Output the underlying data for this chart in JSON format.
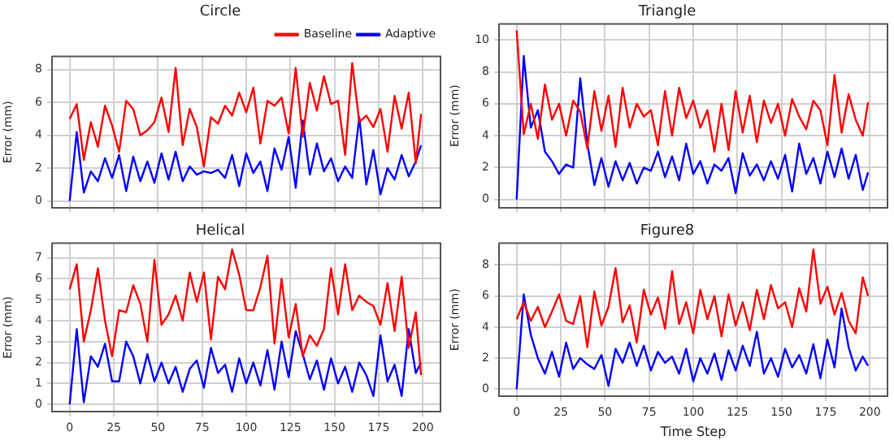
{
  "chart_data": [
    {
      "type": "line",
      "title": "Circle",
      "ylabel": "Error (mm)",
      "xlim": [
        -10,
        210
      ],
      "xticks": [
        0,
        25,
        50,
        75,
        100,
        125,
        150,
        175,
        200
      ],
      "ylim": [
        -0.4,
        8.8
      ],
      "yticks": [
        0,
        2,
        4,
        6,
        8
      ],
      "grid": true,
      "legend": "top right",
      "tick_labels": "y",
      "marker": "none",
      "x": [
        0,
        4,
        8,
        12,
        16,
        20,
        24,
        28,
        32,
        36,
        40,
        44,
        48,
        52,
        56,
        60,
        64,
        68,
        72,
        76,
        80,
        84,
        88,
        92,
        96,
        100,
        104,
        108,
        112,
        116,
        120,
        124,
        128,
        132,
        136,
        140,
        144,
        148,
        152,
        156,
        160,
        164,
        168,
        172,
        176,
        180,
        184,
        188,
        192,
        196,
        199
      ],
      "series": [
        {
          "name": "Baseline",
          "color": "#ff0000",
          "values": [
            5.0,
            5.9,
            2.5,
            4.8,
            3.3,
            5.8,
            4.6,
            3.0,
            6.1,
            5.6,
            4.0,
            4.3,
            4.8,
            6.3,
            4.2,
            8.1,
            3.4,
            5.6,
            4.5,
            2.1,
            5.1,
            4.7,
            5.8,
            5.2,
            6.6,
            5.4,
            6.9,
            3.5,
            6.1,
            5.8,
            6.3,
            4.1,
            8.1,
            3.9,
            7.2,
            5.5,
            7.6,
            5.9,
            6.1,
            2.8,
            8.4,
            4.8,
            5.2,
            4.5,
            5.6,
            3.0,
            6.4,
            4.4,
            6.6,
            2.3,
            5.3
          ]
        },
        {
          "name": "Adaptive",
          "color": "#0000ff",
          "values": [
            0.0,
            4.2,
            0.5,
            1.8,
            1.2,
            2.6,
            1.4,
            2.8,
            0.6,
            2.7,
            1.2,
            2.4,
            1.1,
            2.9,
            1.3,
            3.0,
            1.2,
            2.1,
            1.6,
            1.8,
            1.7,
            1.9,
            1.4,
            2.8,
            0.9,
            2.9,
            1.7,
            2.4,
            0.6,
            3.2,
            1.9,
            3.9,
            0.8,
            4.9,
            1.6,
            3.5,
            1.8,
            2.6,
            1.2,
            2.1,
            1.4,
            5.1,
            1.0,
            3.1,
            0.4,
            2.0,
            1.3,
            2.8,
            1.5,
            2.4,
            3.4
          ]
        }
      ]
    },
    {
      "type": "line",
      "title": "Triangle",
      "ylabel": "Error (mm)",
      "xlim": [
        -10,
        210
      ],
      "xticks": [
        0,
        25,
        50,
        75,
        100,
        125,
        150,
        175,
        200
      ],
      "ylim": [
        -0.5,
        11
      ],
      "yticks": [
        0,
        2,
        4,
        6,
        8,
        10
      ],
      "grid": true,
      "tick_labels": "y",
      "marker": "none",
      "x": [
        0,
        4,
        8,
        12,
        16,
        20,
        24,
        28,
        32,
        36,
        40,
        44,
        48,
        52,
        56,
        60,
        64,
        68,
        72,
        76,
        80,
        84,
        88,
        92,
        96,
        100,
        104,
        108,
        112,
        116,
        120,
        124,
        128,
        132,
        136,
        140,
        144,
        148,
        152,
        156,
        160,
        164,
        168,
        172,
        176,
        180,
        184,
        188,
        192,
        196,
        199
      ],
      "series": [
        {
          "color": "#ff0000",
          "values": [
            10.6,
            4.1,
            6.0,
            3.8,
            7.2,
            5.0,
            6.0,
            4.0,
            6.2,
            5.5,
            3.2,
            6.8,
            4.3,
            6.5,
            3.3,
            7.0,
            4.5,
            6.0,
            5.2,
            5.6,
            3.4,
            6.8,
            4.0,
            7.0,
            5.1,
            6.2,
            4.5,
            5.6,
            3.0,
            6.0,
            3.1,
            6.8,
            4.2,
            6.5,
            3.6,
            6.2,
            4.8,
            6.0,
            4.0,
            6.3,
            5.2,
            4.4,
            6.2,
            5.6,
            3.4,
            7.8,
            4.2,
            6.6,
            5.0,
            4.0,
            6.1
          ]
        },
        {
          "color": "#0000ff",
          "values": [
            0.0,
            9.0,
            4.5,
            5.6,
            3.0,
            2.4,
            1.6,
            2.2,
            2.0,
            7.6,
            3.5,
            0.9,
            2.6,
            0.8,
            2.4,
            1.2,
            2.3,
            1.0,
            2.0,
            1.8,
            3.0,
            1.4,
            2.7,
            1.2,
            3.5,
            1.6,
            2.4,
            1.0,
            2.2,
            1.8,
            2.6,
            0.4,
            2.9,
            1.5,
            2.2,
            1.2,
            2.4,
            1.3,
            2.8,
            0.5,
            3.5,
            1.6,
            2.6,
            1.0,
            3.0,
            1.4,
            3.2,
            1.3,
            2.8,
            0.6,
            1.7
          ]
        }
      ]
    },
    {
      "type": "line",
      "title": "Helical",
      "ylabel": "Error (mm)",
      "xlim": [
        -10,
        210
      ],
      "xticks": [
        0,
        25,
        50,
        75,
        100,
        125,
        150,
        175,
        200
      ],
      "ylim": [
        -0.35,
        7.7
      ],
      "yticks": [
        0,
        1,
        2,
        3,
        4,
        5,
        6,
        7
      ],
      "grid": true,
      "marker": "none",
      "x": [
        0,
        4,
        8,
        12,
        16,
        20,
        24,
        28,
        32,
        36,
        40,
        44,
        48,
        52,
        56,
        60,
        64,
        68,
        72,
        76,
        80,
        84,
        88,
        92,
        96,
        100,
        104,
        108,
        112,
        116,
        120,
        124,
        128,
        132,
        136,
        140,
        144,
        148,
        152,
        156,
        160,
        164,
        168,
        172,
        176,
        180,
        184,
        188,
        192,
        196,
        199
      ],
      "series": [
        {
          "color": "#ff0000",
          "values": [
            5.5,
            6.7,
            3.0,
            4.5,
            6.5,
            4.0,
            2.3,
            4.5,
            4.4,
            5.7,
            4.8,
            3.0,
            6.9,
            3.8,
            4.3,
            5.2,
            4.0,
            6.3,
            4.9,
            6.3,
            3.1,
            6.1,
            5.5,
            7.4,
            6.2,
            4.5,
            4.5,
            5.6,
            7.1,
            2.9,
            6.0,
            3.2,
            4.8,
            2.3,
            3.3,
            2.8,
            3.6,
            6.5,
            4.3,
            6.7,
            4.5,
            5.2,
            4.9,
            4.7,
            3.8,
            5.8,
            3.5,
            6.1,
            2.7,
            4.4,
            1.4
          ]
        },
        {
          "color": "#0000ff",
          "values": [
            0.0,
            3.6,
            0.1,
            2.3,
            1.8,
            2.9,
            1.1,
            1.1,
            3.0,
            2.3,
            1.0,
            2.4,
            1.1,
            2.0,
            1.0,
            1.8,
            0.6,
            1.7,
            2.1,
            0.8,
            2.7,
            1.5,
            1.9,
            0.6,
            2.2,
            1.0,
            2.0,
            0.9,
            2.6,
            0.7,
            3.0,
            1.3,
            3.5,
            2.4,
            1.2,
            2.1,
            0.7,
            2.2,
            1.0,
            1.8,
            0.6,
            2.0,
            1.4,
            0.4,
            3.3,
            1.1,
            1.9,
            0.4,
            3.6,
            1.5,
            2.0
          ]
        }
      ]
    },
    {
      "type": "line",
      "title": "Figure8",
      "xlabel": "Time Step",
      "ylabel": "Error (mm)",
      "xlim": [
        -10,
        210
      ],
      "xticks": [
        0,
        25,
        50,
        75,
        100,
        125,
        150,
        175,
        200
      ],
      "ylim": [
        -0.45,
        9.4
      ],
      "yticks": [
        0,
        2,
        4,
        6,
        8
      ],
      "grid": true,
      "marker": "none",
      "x": [
        0,
        4,
        8,
        12,
        16,
        20,
        24,
        28,
        32,
        36,
        40,
        44,
        48,
        52,
        56,
        60,
        64,
        68,
        72,
        76,
        80,
        84,
        88,
        92,
        96,
        100,
        104,
        108,
        112,
        116,
        120,
        124,
        128,
        132,
        136,
        140,
        144,
        148,
        152,
        156,
        160,
        164,
        168,
        172,
        176,
        180,
        184,
        188,
        192,
        196,
        199
      ],
      "series": [
        {
          "color": "#ff0000",
          "values": [
            4.5,
            5.6,
            4.4,
            5.3,
            4.0,
            5.0,
            6.1,
            4.4,
            4.2,
            6.0,
            2.7,
            6.3,
            4.1,
            5.3,
            7.8,
            4.3,
            5.4,
            3.0,
            6.4,
            4.8,
            5.9,
            3.9,
            7.6,
            4.2,
            5.6,
            3.6,
            6.4,
            4.5,
            6.0,
            3.4,
            6.1,
            4.1,
            5.6,
            3.8,
            6.4,
            4.5,
            6.7,
            5.2,
            5.6,
            4.0,
            6.5,
            5.0,
            9.0,
            5.5,
            6.6,
            4.8,
            6.2,
            4.4,
            3.6,
            7.2,
            6.0
          ]
        },
        {
          "color": "#0000ff",
          "values": [
            0.0,
            6.1,
            3.5,
            2.0,
            1.0,
            2.4,
            0.8,
            3.0,
            1.3,
            2.0,
            1.6,
            1.3,
            2.2,
            0.2,
            2.6,
            1.7,
            3.0,
            1.5,
            2.8,
            1.2,
            2.4,
            1.7,
            2.1,
            1.0,
            2.6,
            0.5,
            2.0,
            1.0,
            2.3,
            0.6,
            2.5,
            1.2,
            2.8,
            1.5,
            3.7,
            1.0,
            2.0,
            0.8,
            2.6,
            1.4,
            2.2,
            1.0,
            2.9,
            0.7,
            3.2,
            1.4,
            5.2,
            2.7,
            1.2,
            2.1,
            1.5
          ]
        }
      ]
    }
  ]
}
